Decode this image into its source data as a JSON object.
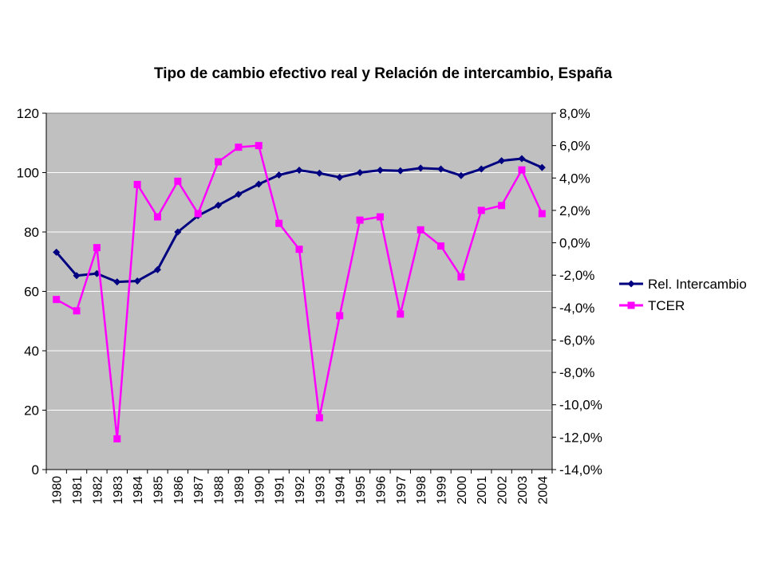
{
  "chart_data": {
    "type": "line",
    "title": "Tipo de cambio efectivo real y Relación de intercambio, España",
    "categories": [
      "1980",
      "1981",
      "1982",
      "1983",
      "1984",
      "1985",
      "1986",
      "1987",
      "1988",
      "1989",
      "1990",
      "1991",
      "1992",
      "1993",
      "1994",
      "1995",
      "1996",
      "1997",
      "1998",
      "1999",
      "2000",
      "2001",
      "2002",
      "2003",
      "2004"
    ],
    "y_left": {
      "ylim": [
        0,
        120
      ],
      "ticks": [
        "0",
        "20",
        "40",
        "60",
        "80",
        "100",
        "120"
      ]
    },
    "y_right": {
      "ylim": [
        -14,
        8
      ],
      "ticks": [
        "-14,0%",
        "-12,0%",
        "-10,0%",
        "-8,0%",
        "-6,0%",
        "-4,0%",
        "-2,0%",
        "0,0%",
        "2,0%",
        "4,0%",
        "6,0%",
        "8,0%"
      ]
    },
    "series": [
      {
        "name": "Rel. Intercambio",
        "axis": "left",
        "color": "#000080",
        "marker": "diamond",
        "values": [
          73.2,
          65.3,
          66.0,
          63.2,
          63.5,
          67.3,
          80.0,
          85.5,
          89.0,
          92.7,
          96.1,
          99.2,
          100.8,
          99.8,
          98.4,
          100.0,
          100.8,
          100.6,
          101.5,
          101.2,
          99.0,
          101.2,
          104.0,
          104.7,
          101.7
        ]
      },
      {
        "name": "TCER",
        "axis": "right",
        "color": "#FF00FF",
        "marker": "square",
        "values": [
          -3.5,
          -4.2,
          -0.3,
          -12.1,
          3.6,
          1.6,
          3.8,
          1.8,
          5.0,
          5.9,
          6.0,
          1.2,
          -0.4,
          -10.8,
          -4.5,
          1.4,
          1.6,
          -4.4,
          0.8,
          -0.2,
          -2.1,
          2.0,
          2.3,
          4.5,
          1.8
        ]
      }
    ],
    "grid": true,
    "legend": "right"
  },
  "colors": {
    "plot_background": "#C0C0C0",
    "gridline": "#FFFFFF",
    "axis": "#000000"
  }
}
